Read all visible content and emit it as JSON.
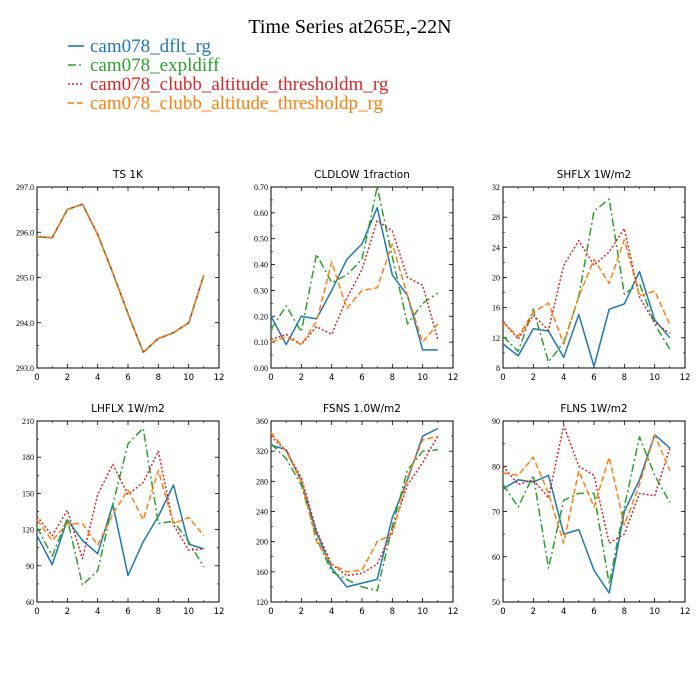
{
  "figure": {
    "title": "Time Series at265E,-22N",
    "legend": [
      {
        "label": "cam078_dflt_rg",
        "color": "#1f77b4",
        "dash": ""
      },
      {
        "label": "cam078_expldiff",
        "color": "#2ca02c",
        "dash": "8,3,2,3"
      },
      {
        "label": "cam078_clubb_altitude_thresholdm_rg",
        "color": "#d62728",
        "dash": "2,2"
      },
      {
        "label": "cam078_clubb_altitude_thresholdp_rg",
        "color": "#ff7f0e",
        "dash": "6,3"
      }
    ]
  },
  "chart_data": [
    {
      "type": "line",
      "title": "TS   1K",
      "x": [
        0,
        1,
        2,
        3,
        4,
        5,
        6,
        7,
        8,
        9,
        10,
        11
      ],
      "xlim": [
        0,
        12
      ],
      "xticks": [
        0,
        2,
        4,
        6,
        8,
        10,
        12
      ],
      "ylim": [
        293.0,
        297.0
      ],
      "yticks": [
        "293.0",
        "294.0",
        "295.0",
        "296.0",
        "297.0"
      ],
      "series": [
        {
          "name": "cam078_dflt_rg",
          "values": [
            295.9,
            295.88,
            296.5,
            296.62,
            295.95,
            295.1,
            294.2,
            293.35,
            293.65,
            293.78,
            294.0,
            295.05
          ]
        },
        {
          "name": "cam078_expldiff",
          "values": [
            295.9,
            295.88,
            296.5,
            296.62,
            295.95,
            295.1,
            294.2,
            293.35,
            293.65,
            293.78,
            294.0,
            295.05
          ]
        },
        {
          "name": "cam078_clubb_altitude_thresholdm_rg",
          "values": [
            295.9,
            295.88,
            296.5,
            296.62,
            295.95,
            295.1,
            294.2,
            293.35,
            293.65,
            293.78,
            294.0,
            295.05
          ]
        },
        {
          "name": "cam078_clubb_altitude_thresholdp_rg",
          "values": [
            295.9,
            295.88,
            296.5,
            296.62,
            295.95,
            295.1,
            294.2,
            293.35,
            293.65,
            293.78,
            294.0,
            295.05
          ]
        }
      ]
    },
    {
      "type": "line",
      "title": "CLDLOW   1fraction",
      "x": [
        0,
        1,
        2,
        3,
        4,
        5,
        6,
        7,
        8,
        9,
        10,
        11
      ],
      "xlim": [
        0,
        12
      ],
      "xticks": [
        0,
        2,
        4,
        6,
        8,
        10,
        12
      ],
      "ylim": [
        0.0,
        0.7
      ],
      "yticks": [
        "0.00",
        "0.10",
        "0.20",
        "0.30",
        "0.40",
        "0.50",
        "0.60",
        "0.70"
      ],
      "series": [
        {
          "name": "cam078_dflt_rg",
          "values": [
            0.2,
            0.09,
            0.2,
            0.19,
            0.3,
            0.42,
            0.48,
            0.62,
            0.36,
            0.28,
            0.07,
            0.07
          ]
        },
        {
          "name": "cam078_expldiff",
          "values": [
            0.15,
            0.24,
            0.14,
            0.44,
            0.33,
            0.36,
            0.42,
            0.7,
            0.43,
            0.17,
            0.25,
            0.29
          ]
        },
        {
          "name": "cam078_clubb_altitude_thresholdm_rg",
          "values": [
            0.11,
            0.13,
            0.09,
            0.16,
            0.13,
            0.27,
            0.38,
            0.57,
            0.53,
            0.35,
            0.32,
            0.11
          ]
        },
        {
          "name": "cam078_clubb_altitude_thresholdp_rg",
          "values": [
            0.1,
            0.12,
            0.09,
            0.18,
            0.41,
            0.23,
            0.3,
            0.31,
            0.48,
            0.28,
            0.1,
            0.17
          ]
        }
      ]
    },
    {
      "type": "line",
      "title": "SHFLX   1W/m2",
      "x": [
        0,
        1,
        2,
        3,
        4,
        5,
        6,
        7,
        8,
        9,
        10,
        11
      ],
      "xlim": [
        0,
        12
      ],
      "xticks": [
        0,
        2,
        4,
        6,
        8,
        10,
        12
      ],
      "ylim": [
        8,
        32
      ],
      "yticks": [
        "8",
        "12",
        "16",
        "20",
        "24",
        "28",
        "32"
      ],
      "series": [
        {
          "name": "cam078_dflt_rg",
          "values": [
            11.2,
            9.6,
            13.2,
            12.9,
            9.4,
            15.1,
            8.2,
            15.8,
            16.5,
            20.8,
            14.4,
            12.0
          ]
        },
        {
          "name": "cam078_expldiff",
          "values": [
            12.2,
            10.2,
            15.8,
            8.8,
            11.4,
            17.5,
            28.8,
            30.4,
            17.8,
            19.2,
            13.8,
            10.5
          ]
        },
        {
          "name": "cam078_clubb_altitude_thresholdm_rg",
          "values": [
            14.2,
            11.8,
            15.0,
            13.0,
            21.6,
            24.9,
            21.6,
            23.4,
            26.5,
            17.4,
            14.0,
            12.6
          ]
        },
        {
          "name": "cam078_clubb_altitude_thresholdp_rg",
          "values": [
            14.0,
            12.2,
            15.4,
            16.6,
            11.2,
            17.5,
            22.4,
            19.2,
            25.0,
            17.6,
            18.2,
            13.8
          ]
        }
      ]
    },
    {
      "type": "line",
      "title": "LHFLX   1W/m2",
      "x": [
        0,
        1,
        2,
        3,
        4,
        5,
        6,
        7,
        8,
        9,
        10,
        11
      ],
      "xlim": [
        0,
        12
      ],
      "xticks": [
        0,
        2,
        4,
        6,
        8,
        10,
        12
      ],
      "ylim": [
        60,
        210
      ],
      "yticks": [
        "60",
        "90",
        "120",
        "150",
        "180",
        "210"
      ],
      "series": [
        {
          "name": "cam078_dflt_rg",
          "values": [
            115,
            91,
            128,
            111,
            100,
            141,
            82,
            110,
            131,
            157,
            108,
            104
          ]
        },
        {
          "name": "cam078_expldiff",
          "values": [
            122,
            98,
            129,
            74,
            86,
            141,
            191,
            204,
            125,
            127,
            110,
            89
          ]
        },
        {
          "name": "cam078_clubb_altitude_thresholdm_rg",
          "values": [
            131,
            115,
            136,
            96,
            149,
            174,
            149,
            159,
            185,
            124,
            103,
            104
          ]
        },
        {
          "name": "cam078_clubb_altitude_thresholdp_rg",
          "values": [
            128,
            111,
            125,
            125,
            107,
            133,
            153,
            128,
            169,
            125,
            130,
            115
          ]
        }
      ]
    },
    {
      "type": "line",
      "title": "FSNS   1.0W/m2",
      "x": [
        0,
        1,
        2,
        3,
        4,
        5,
        6,
        7,
        8,
        9,
        10,
        11
      ],
      "xlim": [
        0,
        12
      ],
      "xticks": [
        0,
        2,
        4,
        6,
        8,
        10,
        12
      ],
      "ylim": [
        120,
        360
      ],
      "yticks": [
        "120",
        "160",
        "200",
        "240",
        "280",
        "320",
        "360"
      ],
      "series": [
        {
          "name": "cam078_dflt_rg",
          "values": [
            328,
            322,
            280,
            212,
            165,
            140,
            145,
            150,
            232,
            282,
            340,
            350
          ]
        },
        {
          "name": "cam078_expldiff",
          "values": [
            330,
            310,
            275,
            205,
            160,
            150,
            140,
            135,
            220,
            295,
            320,
            322
          ]
        },
        {
          "name": "cam078_clubb_altitude_thresholdm_rg",
          "values": [
            340,
            320,
            285,
            215,
            170,
            155,
            158,
            170,
            215,
            275,
            305,
            340
          ]
        },
        {
          "name": "cam078_clubb_altitude_thresholdp_rg",
          "values": [
            345,
            320,
            280,
            200,
            170,
            160,
            162,
            200,
            210,
            285,
            335,
            340
          ]
        }
      ]
    },
    {
      "type": "line",
      "title": "FLNS   1W/m2",
      "x": [
        0,
        1,
        2,
        3,
        4,
        5,
        6,
        7,
        8,
        9,
        10,
        11
      ],
      "xlim": [
        0,
        12
      ],
      "xticks": [
        0,
        2,
        4,
        6,
        8,
        10,
        12
      ],
      "ylim": [
        50,
        90
      ],
      "yticks": [
        "50",
        "60",
        "70",
        "80",
        "90"
      ],
      "series": [
        {
          "name": "cam078_dflt_rg",
          "values": [
            75,
            77,
            76.5,
            78,
            65,
            66,
            57,
            52,
            70,
            77,
            87,
            84
          ]
        },
        {
          "name": "cam078_expldiff",
          "values": [
            76,
            71,
            78,
            57.5,
            72.5,
            74,
            74,
            54,
            71,
            86.5,
            78,
            72
          ]
        },
        {
          "name": "cam078_clubb_altitude_thresholdm_rg",
          "values": [
            80,
            76,
            77,
            73,
            89,
            80,
            78,
            63,
            65,
            74,
            73.5,
            84
          ]
        },
        {
          "name": "cam078_clubb_altitude_thresholdp_rg",
          "values": [
            78.5,
            78,
            82,
            74,
            63,
            79,
            71,
            82,
            67,
            76,
            87,
            79
          ]
        }
      ]
    }
  ]
}
